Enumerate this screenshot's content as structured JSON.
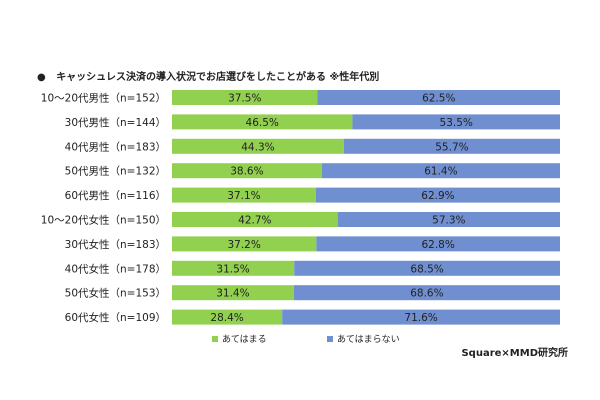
{
  "chart_data": {
    "type": "bar",
    "orientation": "horizontal",
    "stacked": "100%",
    "title": "キャッシュレス決済の導入状況でお店選びをしたことがある ※性年代別",
    "categories": [
      "10～20代男性（n=152）",
      "30代男性（n=144）",
      "40代男性（n=183）",
      "50代男性（n=132）",
      "60代男性（n=116）",
      "10～20代女性（n=150）",
      "30代女性（n=183）",
      "40代女性（n=178）",
      "50代女性（n=153）",
      "60代女性（n=109）"
    ],
    "series": [
      {
        "name": "あてはまる",
        "color": "#92d050",
        "values": [
          37.5,
          46.5,
          44.3,
          38.6,
          37.1,
          42.7,
          37.2,
          31.5,
          31.4,
          28.4
        ],
        "labels": [
          "37.5%",
          "46.5%",
          "44.3%",
          "38.6%",
          "37.1%",
          "42.7%",
          "37.2%",
          "31.5%",
          "31.4%",
          "28.4%"
        ]
      },
      {
        "name": "あてはまらない",
        "color": "#6f8fd0",
        "values": [
          62.5,
          53.5,
          55.7,
          61.4,
          62.9,
          57.3,
          62.8,
          68.5,
          68.6,
          71.6
        ],
        "labels": [
          "62.5%",
          "53.5%",
          "55.7%",
          "61.4%",
          "62.9%",
          "57.3%",
          "62.8%",
          "68.5%",
          "68.6%",
          "71.6%"
        ]
      }
    ],
    "xlim": [
      0,
      100
    ],
    "legend_position": "bottom",
    "grid": false
  },
  "bullet": "●",
  "source": "Square×MMD研究所"
}
